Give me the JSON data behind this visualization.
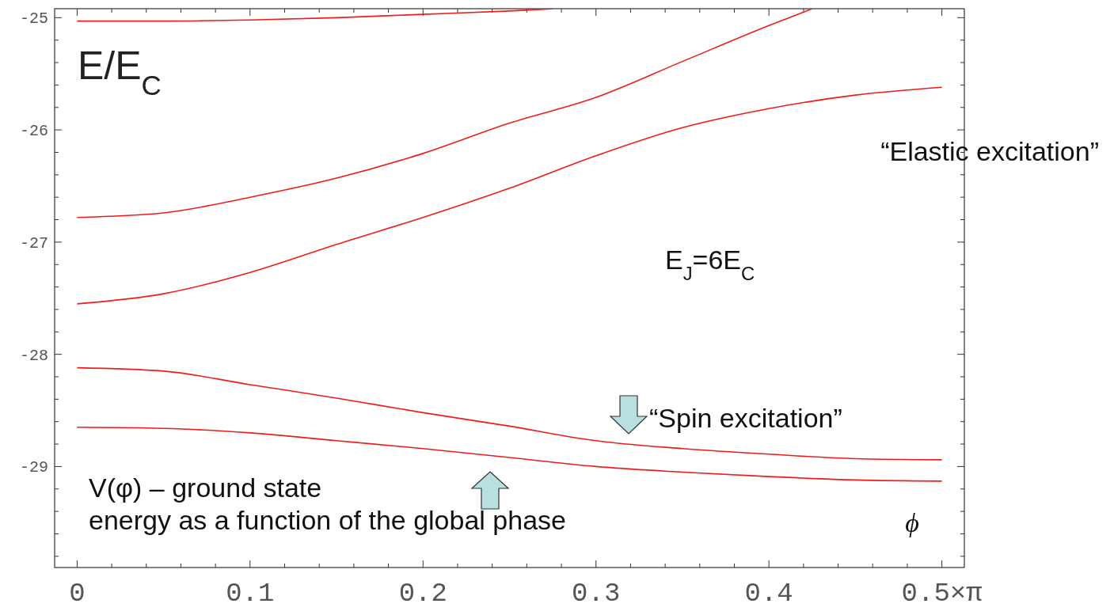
{
  "chart_data": {
    "type": "line",
    "ylabel": "E/E$_{C}$",
    "xlim": [
      -0.013,
      0.513
    ],
    "ylim": [
      -29.9,
      -24.92
    ],
    "xticks": [
      0,
      {
        "value": 0.02,
        "label": null
      },
      {
        "value": 0.04,
        "label": null
      },
      {
        "value": 0.06,
        "label": null
      },
      {
        "value": 0.08,
        "label": null
      },
      0.1,
      {
        "value": 0.12,
        "label": null
      },
      {
        "value": 0.14,
        "label": null
      },
      {
        "value": 0.16,
        "label": null
      },
      {
        "value": 0.18,
        "label": null
      },
      0.2,
      {
        "value": 0.22,
        "label": null
      },
      {
        "value": 0.24,
        "label": null
      },
      {
        "value": 0.26,
        "label": null
      },
      {
        "value": 0.28,
        "label": null
      },
      0.3,
      {
        "value": 0.32,
        "label": null
      },
      {
        "value": 0.34,
        "label": null
      },
      {
        "value": 0.36,
        "label": null
      },
      {
        "value": 0.38,
        "label": null
      },
      0.4,
      {
        "value": 0.42,
        "label": null
      },
      {
        "value": 0.44,
        "label": null
      },
      {
        "value": 0.46,
        "label": null
      },
      {
        "value": 0.48,
        "label": null
      },
      {
        "value": 0.5,
        "label": "0.5×π"
      }
    ],
    "yticks": [
      -25,
      {
        "value": -25.2,
        "label": null
      },
      {
        "value": -25.4,
        "label": null
      },
      {
        "value": -25.6,
        "label": null
      },
      {
        "value": -25.8,
        "label": null
      },
      -26,
      {
        "value": -26.2,
        "label": null
      },
      {
        "value": -26.4,
        "label": null
      },
      {
        "value": -26.6,
        "label": null
      },
      {
        "value": -26.8,
        "label": null
      },
      -27,
      {
        "value": -27.2,
        "label": null
      },
      {
        "value": -27.4,
        "label": null
      },
      {
        "value": -27.6,
        "label": null
      },
      {
        "value": -27.8,
        "label": null
      },
      -28,
      {
        "value": -28.2,
        "label": null
      },
      {
        "value": -28.4,
        "label": null
      },
      {
        "value": -28.6,
        "label": null
      },
      {
        "value": -28.8,
        "label": null
      },
      -29,
      {
        "value": -29.2,
        "label": null
      },
      {
        "value": -29.4,
        "label": null
      },
      {
        "value": -29.6,
        "label": null
      },
      {
        "value": -29.8,
        "label": null
      }
    ],
    "series": [
      {
        "color": "#ee1c1c",
        "x": [
          0,
          0.05,
          0.1,
          0.15,
          0.2,
          0.25,
          0.275
        ],
        "values": [
          -25.03,
          -25.03,
          -25.02,
          -25.0,
          -24.97,
          -24.94,
          -24.92
        ]
      },
      {
        "color": "#ee1c1c",
        "x": [
          0,
          0.05,
          0.1,
          0.15,
          0.2,
          0.25,
          0.3,
          0.35,
          0.4,
          0.425
        ],
        "values": [
          -26.78,
          -26.74,
          -26.6,
          -26.43,
          -26.21,
          -25.94,
          -25.71,
          -25.39,
          -25.07,
          -24.92
        ]
      },
      {
        "color": "#ee1c1c",
        "x": [
          0,
          0.05,
          0.1,
          0.15,
          0.2,
          0.25,
          0.3,
          0.35,
          0.4,
          0.45,
          0.5
        ],
        "values": [
          -27.55,
          -27.46,
          -27.27,
          -27.02,
          -26.78,
          -26.52,
          -26.23,
          -25.98,
          -25.81,
          -25.69,
          -25.62
        ]
      },
      {
        "color": "#ee1c1c",
        "x": [
          0,
          0.05,
          0.1,
          0.15,
          0.2,
          0.25,
          0.3,
          0.35,
          0.4,
          0.45,
          0.5
        ],
        "values": [
          -28.12,
          -28.15,
          -28.27,
          -28.39,
          -28.52,
          -28.64,
          -28.77,
          -28.84,
          -28.89,
          -28.93,
          -28.94
        ]
      },
      {
        "color": "#ee1c1c",
        "x": [
          0,
          0.05,
          0.1,
          0.15,
          0.2,
          0.25,
          0.3,
          0.35,
          0.4,
          0.45,
          0.5
        ],
        "values": [
          -28.65,
          -28.66,
          -28.7,
          -28.77,
          -28.84,
          -28.92,
          -29.0,
          -29.05,
          -29.09,
          -29.12,
          -29.13
        ]
      }
    ],
    "annotations": [
      "E$_{J}$=6E$_{C}$",
      "“Elastic excitation”",
      "“Spin excitation”",
      "V(φ) – ground state\nenergy as a function of the global phase",
      "ϕ"
    ],
    "grid": false,
    "marker": "none",
    "line_style": "solid"
  }
}
